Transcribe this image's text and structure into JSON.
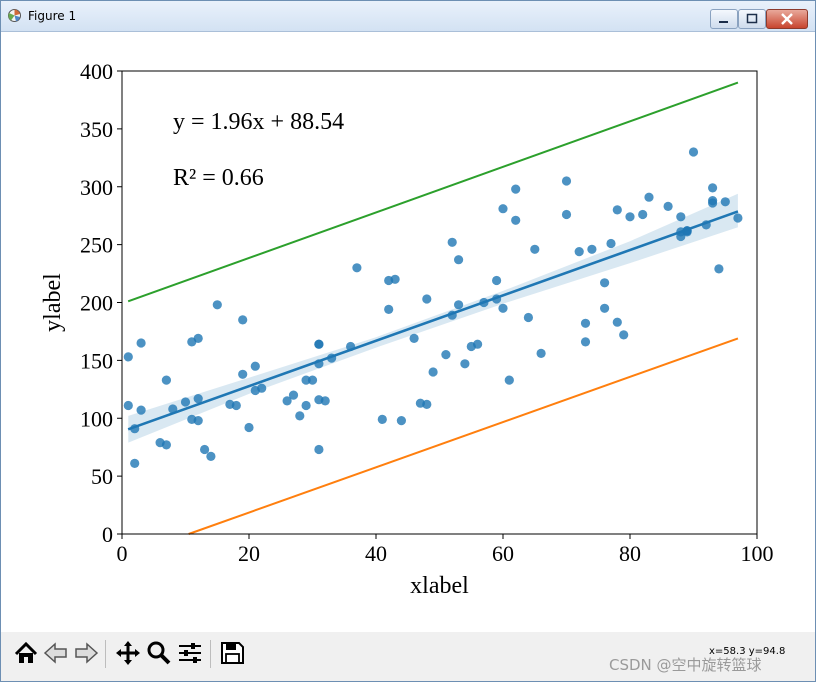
{
  "window": {
    "title": "Figure 1"
  },
  "chart_data": {
    "type": "scatter",
    "title": "",
    "xlabel": "xlabel",
    "ylabel": "ylabel",
    "xlim": [
      0,
      100
    ],
    "ylim": [
      0,
      400
    ],
    "xticks": [
      "0",
      "20",
      "40",
      "60",
      "80",
      "100"
    ],
    "yticks": [
      "0",
      "50",
      "100",
      "150",
      "200",
      "250",
      "300",
      "350",
      "400"
    ],
    "grid": false,
    "equation_text": "y = 1.96x + 88.54",
    "r2_text": "R² = 0.66",
    "colors": {
      "points": "#1f77b4",
      "fit": "#1f77b4",
      "upper": "#2ca02c",
      "lower": "#ff7f0e"
    },
    "points": [
      [
        1,
        153
      ],
      [
        1,
        111
      ],
      [
        2,
        91
      ],
      [
        2,
        61
      ],
      [
        3,
        107
      ],
      [
        3,
        165
      ],
      [
        6,
        79
      ],
      [
        7,
        133
      ],
      [
        7,
        77
      ],
      [
        8,
        108
      ],
      [
        10,
        114
      ],
      [
        11,
        166
      ],
      [
        11,
        99
      ],
      [
        12,
        169
      ],
      [
        12,
        98
      ],
      [
        12,
        117
      ],
      [
        13,
        73
      ],
      [
        14,
        67
      ],
      [
        15,
        198
      ],
      [
        17,
        112
      ],
      [
        18,
        111
      ],
      [
        19,
        185
      ],
      [
        19,
        138
      ],
      [
        20,
        92
      ],
      [
        21,
        145
      ],
      [
        21,
        124
      ],
      [
        22,
        126
      ],
      [
        26,
        115
      ],
      [
        27,
        120
      ],
      [
        28,
        102
      ],
      [
        29,
        133
      ],
      [
        29,
        111
      ],
      [
        30,
        133
      ],
      [
        31,
        164
      ],
      [
        31,
        164
      ],
      [
        31,
        147
      ],
      [
        31,
        116
      ],
      [
        31,
        73
      ],
      [
        32,
        115
      ],
      [
        33,
        152
      ],
      [
        36,
        162
      ],
      [
        37,
        230
      ],
      [
        41,
        99
      ],
      [
        42,
        219
      ],
      [
        42,
        194
      ],
      [
        43,
        220
      ],
      [
        44,
        98
      ],
      [
        46,
        169
      ],
      [
        47,
        113
      ],
      [
        48,
        112
      ],
      [
        48,
        203
      ],
      [
        49,
        140
      ],
      [
        51,
        155
      ],
      [
        52,
        252
      ],
      [
        52,
        189
      ],
      [
        53,
        237
      ],
      [
        53,
        198
      ],
      [
        54,
        147
      ],
      [
        55,
        162
      ],
      [
        56,
        164
      ],
      [
        57,
        200
      ],
      [
        59,
        219
      ],
      [
        59,
        203
      ],
      [
        60,
        281
      ],
      [
        60,
        195
      ],
      [
        61,
        133
      ],
      [
        62,
        298
      ],
      [
        62,
        271
      ],
      [
        64,
        187
      ],
      [
        65,
        246
      ],
      [
        66,
        156
      ],
      [
        70,
        276
      ],
      [
        70,
        305
      ],
      [
        72,
        244
      ],
      [
        73,
        182
      ],
      [
        73,
        166
      ],
      [
        74,
        246
      ],
      [
        76,
        217
      ],
      [
        76,
        195
      ],
      [
        77,
        251
      ],
      [
        78,
        183
      ],
      [
        78,
        280
      ],
      [
        79,
        172
      ],
      [
        80,
        274
      ],
      [
        82,
        276
      ],
      [
        83,
        291
      ],
      [
        86,
        283
      ],
      [
        88,
        261
      ],
      [
        88,
        257
      ],
      [
        88,
        274
      ],
      [
        89,
        261
      ],
      [
        89,
        262
      ],
      [
        89,
        262
      ],
      [
        90,
        330
      ],
      [
        92,
        267
      ],
      [
        93,
        286
      ],
      [
        93,
        299
      ],
      [
        93,
        288
      ],
      [
        94,
        229
      ],
      [
        95,
        287
      ],
      [
        97,
        273
      ]
    ],
    "fit_line": {
      "x": [
        0.97,
        97
      ],
      "slope": 1.96,
      "intercept": 88.54
    },
    "confidence_band": {
      "x": [
        1,
        20,
        40,
        60,
        80,
        97
      ],
      "lower": [
        79,
        121,
        161,
        199,
        234,
        265
      ],
      "upper": [
        102,
        135,
        170,
        210,
        253,
        294
      ]
    },
    "series": [
      {
        "x": [
          0.97,
          97
        ],
        "y": [
          201,
          390
        ]
      },
      {
        "x": [
          10.5,
          97
        ],
        "y": [
          0,
          169
        ]
      }
    ]
  },
  "toolbar": {
    "coords_text": "x=58.3 y=94.8",
    "watermark": "CSDN @空中旋转篮球"
  }
}
